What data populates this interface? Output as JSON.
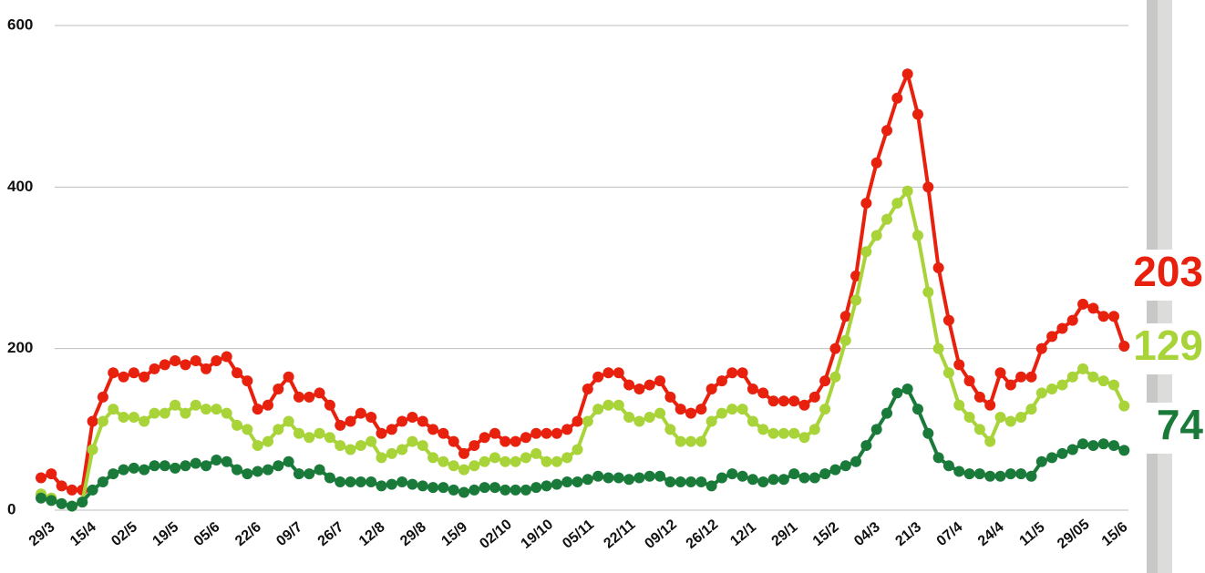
{
  "chart_data": {
    "type": "line",
    "categories": [
      "29/3",
      null,
      null,
      null,
      "15/4",
      null,
      null,
      null,
      "02/5",
      null,
      null,
      null,
      "19/5",
      null,
      null,
      null,
      "05/6",
      null,
      null,
      null,
      "22/6",
      null,
      null,
      null,
      "09/7",
      null,
      null,
      null,
      "26/7",
      null,
      null,
      null,
      "12/8",
      null,
      null,
      null,
      "29/8",
      null,
      null,
      null,
      "15/9",
      null,
      null,
      null,
      "02/10",
      null,
      null,
      null,
      "19/10",
      null,
      null,
      null,
      "05/11",
      null,
      null,
      null,
      "22/11",
      null,
      null,
      null,
      "09/12",
      null,
      null,
      null,
      "26/12",
      null,
      null,
      null,
      "12/1",
      null,
      null,
      null,
      "29/1",
      null,
      null,
      null,
      "15/2",
      null,
      null,
      null,
      "04/3",
      null,
      null,
      null,
      "21/3",
      null,
      null,
      null,
      "07/4",
      null,
      null,
      null,
      "24/4",
      null,
      null,
      null,
      "11/5",
      null,
      null,
      null,
      "29/05",
      null,
      null,
      null,
      "15/6",
      null
    ],
    "series": [
      {
        "color": "#e8210e",
        "values": [
          40,
          45,
          30,
          25,
          25,
          110,
          140,
          170,
          165,
          170,
          165,
          175,
          180,
          185,
          180,
          185,
          175,
          185,
          190,
          170,
          160,
          125,
          130,
          150,
          165,
          140,
          140,
          145,
          130,
          105,
          110,
          120,
          115,
          95,
          100,
          110,
          115,
          110,
          100,
          95,
          85,
          70,
          80,
          90,
          95,
          85,
          85,
          90,
          95,
          95,
          95,
          100,
          110,
          150,
          165,
          170,
          170,
          155,
          150,
          155,
          160,
          140,
          125,
          120,
          125,
          150,
          160,
          170,
          170,
          150,
          145,
          135,
          135,
          135,
          130,
          140,
          160,
          200,
          240,
          290,
          380,
          430,
          470,
          510,
          540,
          490,
          400,
          300,
          235,
          180,
          160,
          140,
          130,
          170,
          155,
          165,
          165,
          200,
          215,
          225,
          235,
          255,
          250,
          240,
          240,
          203
        ]
      },
      {
        "color": "#a8d43a",
        "values": [
          20,
          15,
          8,
          5,
          10,
          75,
          110,
          125,
          115,
          115,
          110,
          120,
          120,
          130,
          120,
          130,
          125,
          125,
          120,
          105,
          100,
          80,
          85,
          100,
          110,
          95,
          90,
          95,
          90,
          80,
          75,
          80,
          85,
          65,
          70,
          75,
          85,
          80,
          65,
          60,
          55,
          50,
          55,
          60,
          65,
          60,
          60,
          65,
          70,
          60,
          60,
          65,
          75,
          110,
          125,
          130,
          130,
          115,
          110,
          115,
          120,
          100,
          85,
          85,
          85,
          110,
          120,
          125,
          125,
          110,
          100,
          95,
          95,
          95,
          90,
          100,
          125,
          165,
          210,
          260,
          320,
          340,
          360,
          380,
          395,
          340,
          270,
          200,
          170,
          130,
          115,
          100,
          85,
          115,
          110,
          115,
          125,
          145,
          150,
          155,
          165,
          175,
          165,
          160,
          155,
          129
        ]
      },
      {
        "color": "#1a7a3a",
        "values": [
          15,
          12,
          8,
          5,
          10,
          25,
          35,
          45,
          50,
          52,
          50,
          55,
          55,
          52,
          55,
          58,
          55,
          62,
          60,
          50,
          45,
          48,
          50,
          55,
          60,
          45,
          45,
          50,
          40,
          35,
          35,
          35,
          35,
          30,
          32,
          35,
          32,
          30,
          28,
          28,
          25,
          22,
          25,
          28,
          28,
          25,
          25,
          25,
          28,
          30,
          32,
          35,
          35,
          38,
          42,
          40,
          40,
          38,
          40,
          42,
          42,
          35,
          35,
          35,
          35,
          30,
          40,
          45,
          42,
          38,
          35,
          38,
          38,
          45,
          40,
          40,
          45,
          50,
          55,
          60,
          80,
          100,
          120,
          145,
          150,
          125,
          95,
          65,
          55,
          48,
          45,
          45,
          42,
          42,
          45,
          45,
          42,
          60,
          65,
          70,
          75,
          82,
          80,
          82,
          80,
          74
        ]
      }
    ],
    "ylim": [
      0,
      600
    ],
    "yticks": [
      0,
      200,
      400,
      600
    ],
    "grid": true
  }
}
